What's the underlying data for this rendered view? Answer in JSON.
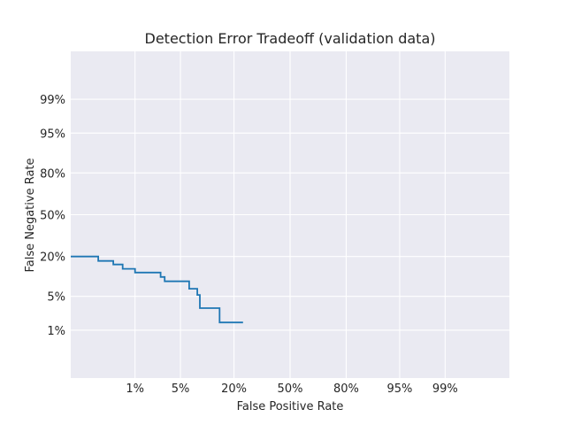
{
  "chart_data": {
    "type": "line",
    "title": "Detection Error Tradeoff (validation data)",
    "xlabel": "False Positive Rate",
    "ylabel": "False Negative Rate",
    "scale": "normal-deviate (probit)",
    "xlim": [
      0.0005,
      0.9995
    ],
    "ylim": [
      0.0005,
      0.9995
    ],
    "x_ticks": [
      {
        "value": 0.01,
        "label": "1%"
      },
      {
        "value": 0.05,
        "label": "5%"
      },
      {
        "value": 0.2,
        "label": "20%"
      },
      {
        "value": 0.5,
        "label": "50%"
      },
      {
        "value": 0.8,
        "label": "80%"
      },
      {
        "value": 0.95,
        "label": "95%"
      },
      {
        "value": 0.99,
        "label": "99%"
      }
    ],
    "y_ticks": [
      {
        "value": 0.01,
        "label": "1%"
      },
      {
        "value": 0.05,
        "label": "5%"
      },
      {
        "value": 0.2,
        "label": "20%"
      },
      {
        "value": 0.5,
        "label": "50%"
      },
      {
        "value": 0.8,
        "label": "80%"
      },
      {
        "value": 0.95,
        "label": "95%"
      },
      {
        "value": 0.99,
        "label": "99%"
      }
    ],
    "grid": true,
    "background": "#eaeaf2",
    "series": [
      {
        "color": "#1f77b4",
        "x": [
          0.0005,
          0.002,
          0.002,
          0.004,
          0.004,
          0.006,
          0.006,
          0.01,
          0.01,
          0.026,
          0.026,
          0.03,
          0.03,
          0.065,
          0.065,
          0.082,
          0.082,
          0.088,
          0.088,
          0.145,
          0.145,
          0.24
        ],
        "y": [
          0.2,
          0.2,
          0.176,
          0.176,
          0.158,
          0.158,
          0.138,
          0.138,
          0.122,
          0.122,
          0.105,
          0.105,
          0.09,
          0.09,
          0.068,
          0.068,
          0.053,
          0.053,
          0.03,
          0.03,
          0.015,
          0.015
        ]
      }
    ]
  }
}
